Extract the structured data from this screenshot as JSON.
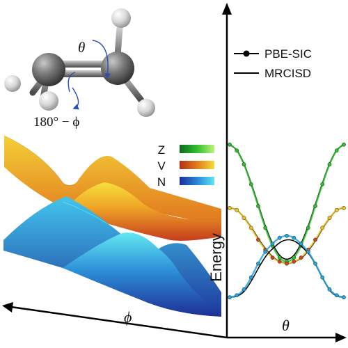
{
  "molecule": {
    "theta_symbol": "θ",
    "twist_label": "180° − ϕ"
  },
  "surface_legend": {
    "items": [
      {
        "label": "Z",
        "colors": [
          "#0b6b1e",
          "#2fbf2f",
          "#bff27a"
        ]
      },
      {
        "label": "V",
        "colors": [
          "#b2301b",
          "#e27a1c",
          "#f4dc3a"
        ]
      },
      {
        "label": "N",
        "colors": [
          "#1b2f9a",
          "#2a86d6",
          "#5fe6f0"
        ]
      }
    ]
  },
  "curve_legend": {
    "items": [
      {
        "label": "PBE-SIC",
        "style": "line-with-dots"
      },
      {
        "label": "MRCISD",
        "style": "line"
      }
    ]
  },
  "axes": {
    "energy_label": "Energy",
    "phi_label": "ϕ",
    "theta_label": "θ"
  },
  "colors": {
    "Z": "#2fbf2f",
    "V_low": "#d2461e",
    "V_high": "#f0c41e",
    "N": "#23a6e0",
    "reference": "#000000"
  },
  "chart_data": {
    "type": "line",
    "x": [
      0,
      0.0625,
      0.125,
      0.1875,
      0.25,
      0.3125,
      0.375,
      0.4375,
      0.5,
      0.5625,
      0.625,
      0.6875,
      0.75,
      0.8125,
      0.875,
      0.9375,
      1
    ],
    "series": [
      {
        "name": "Z",
        "method": "PBE-SIC",
        "values": [
          0.78,
          0.75,
          0.68,
          0.58,
          0.47,
          0.36,
          0.27,
          0.21,
          0.19,
          0.21,
          0.27,
          0.36,
          0.47,
          0.58,
          0.68,
          0.75,
          0.78
        ]
      },
      {
        "name": "V",
        "method": "PBE-SIC",
        "values": [
          0.46,
          0.45,
          0.41,
          0.36,
          0.3,
          0.25,
          0.21,
          0.19,
          0.18,
          0.19,
          0.21,
          0.25,
          0.3,
          0.36,
          0.41,
          0.45,
          0.46
        ]
      },
      {
        "name": "N",
        "method": "PBE-SIC",
        "values": [
          0.01,
          0.02,
          0.05,
          0.11,
          0.18,
          0.24,
          0.28,
          0.31,
          0.32,
          0.31,
          0.28,
          0.24,
          0.18,
          0.11,
          0.05,
          0.02,
          0.01
        ]
      }
    ]
  }
}
